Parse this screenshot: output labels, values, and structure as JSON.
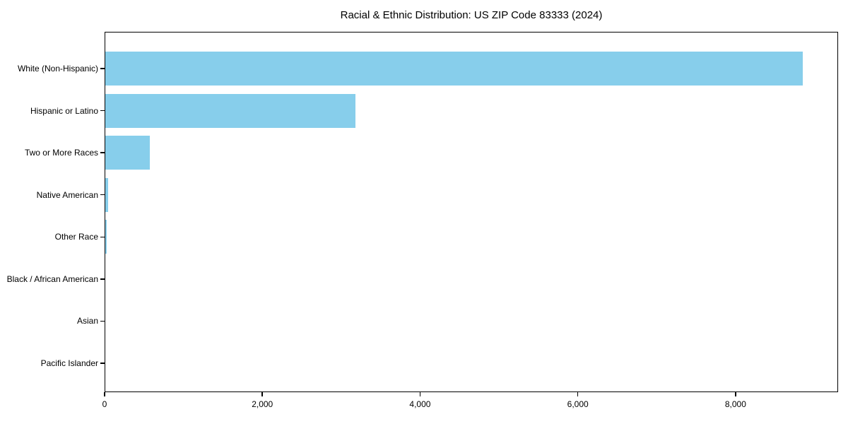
{
  "title": "Racial & Ethnic Distribution: US ZIP Code 83333 (2024)",
  "chart_data": {
    "type": "bar",
    "orientation": "horizontal",
    "title": "Racial & Ethnic Distribution: US ZIP Code 83333 (2024)",
    "categories": [
      "White (Non-Hispanic)",
      "Hispanic or Latino",
      "Two or More Races",
      "Native American",
      "Other Race",
      "Black / African American",
      "Asian",
      "Pacific Islander"
    ],
    "values": [
      8850,
      3180,
      570,
      45,
      25,
      0,
      0,
      0
    ],
    "xlabel": "",
    "ylabel": "",
    "xlim": [
      0,
      9300
    ],
    "xticks": [
      0,
      2000,
      4000,
      6000,
      8000
    ],
    "xtick_labels": [
      "0",
      "2,000",
      "4,000",
      "6,000",
      "8,000"
    ],
    "bar_color": "#87CEEB",
    "axis_color": "#000000",
    "grid": false,
    "legend": null
  }
}
